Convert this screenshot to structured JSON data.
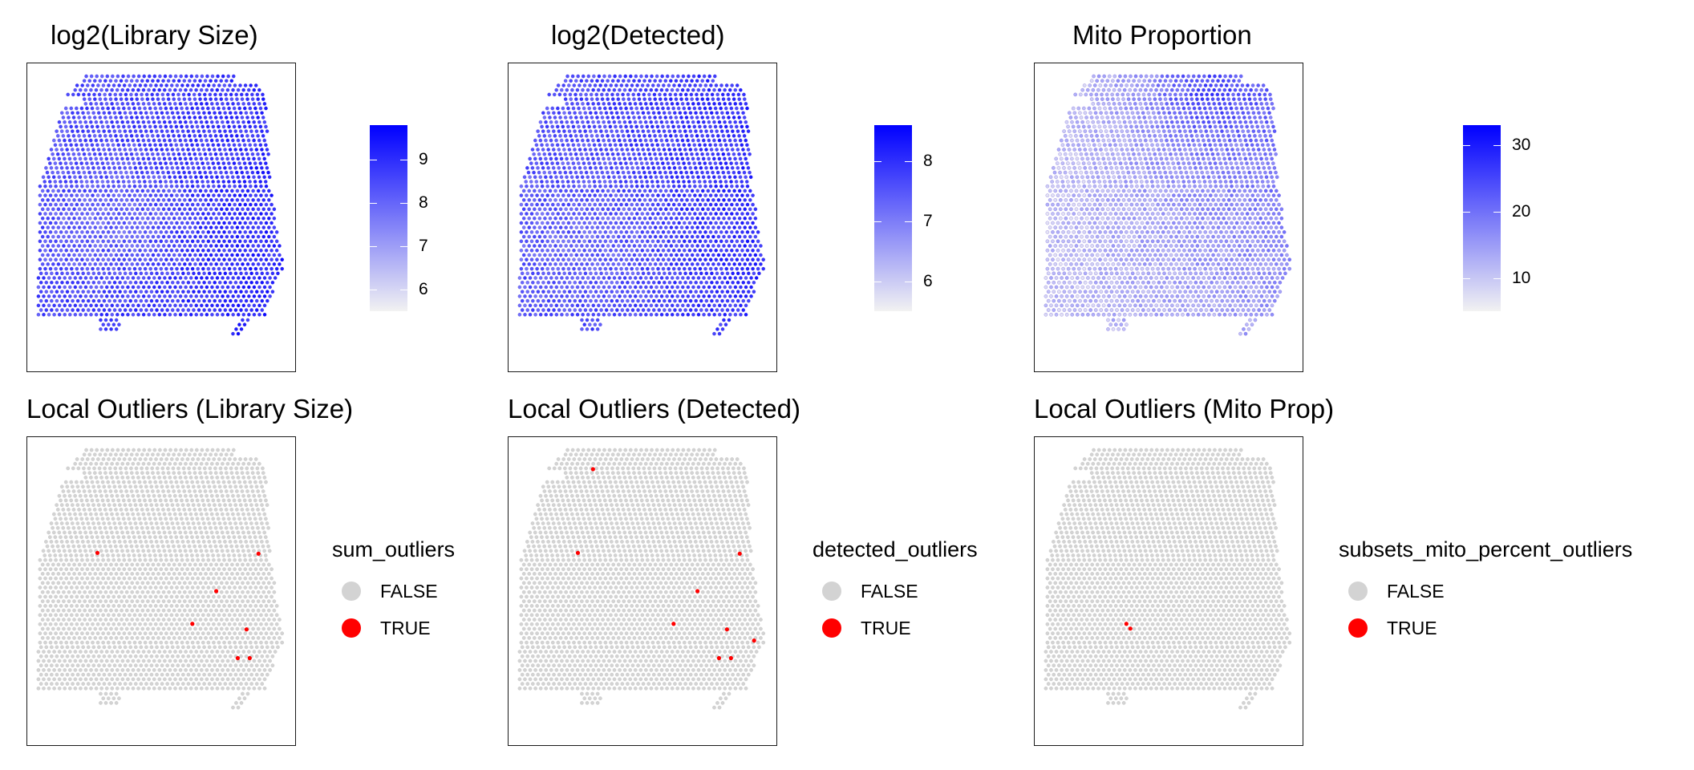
{
  "chart_data": [
    {
      "type": "scatter",
      "panel": "spatial-continuous",
      "title": "log2(Library Size)",
      "color_scale": {
        "low": "#f2f2f2",
        "high": "#0000ff",
        "range": [
          5.5,
          9.8
        ],
        "ticks": [
          6,
          7,
          8,
          9
        ]
      },
      "grid": false,
      "legend_position": "right"
    },
    {
      "type": "scatter",
      "panel": "spatial-continuous",
      "title": "log2(Detected)",
      "color_scale": {
        "low": "#f2f2f2",
        "high": "#0000ff",
        "range": [
          5.5,
          8.6
        ],
        "ticks": [
          6,
          7,
          8
        ]
      },
      "grid": false,
      "legend_position": "right"
    },
    {
      "type": "scatter",
      "panel": "spatial-continuous",
      "title": "Mito Proportion",
      "color_scale": {
        "low": "#f2f2f2",
        "high": "#0000ff",
        "range": [
          5,
          33
        ],
        "ticks": [
          10,
          20,
          30
        ]
      },
      "grid": false,
      "legend_position": "right"
    },
    {
      "type": "scatter",
      "panel": "spatial-discrete",
      "title": "Local Outliers (Library Size)",
      "legend": {
        "title": "sum_outliers",
        "entries": [
          {
            "label": "FALSE",
            "color": "#d3d3d3"
          },
          {
            "label": "TRUE",
            "color": "#ff0000"
          }
        ]
      },
      "outlier_count": 7,
      "grid": false,
      "legend_position": "right"
    },
    {
      "type": "scatter",
      "panel": "spatial-discrete",
      "title": "Local Outliers (Detected)",
      "legend": {
        "title": "detected_outliers",
        "entries": [
          {
            "label": "FALSE",
            "color": "#d3d3d3"
          },
          {
            "label": "TRUE",
            "color": "#ff0000"
          }
        ]
      },
      "outlier_count": 9,
      "grid": false,
      "legend_position": "right"
    },
    {
      "type": "scatter",
      "panel": "spatial-discrete",
      "title": "Local Outliers (Mito Prop)",
      "legend": {
        "title": "subsets_mito_percent_outliers",
        "entries": [
          {
            "label": "FALSE",
            "color": "#d3d3d3"
          },
          {
            "label": "TRUE",
            "color": "#ff0000"
          }
        ]
      },
      "outlier_count": 2,
      "grid": false,
      "legend_position": "right"
    }
  ]
}
